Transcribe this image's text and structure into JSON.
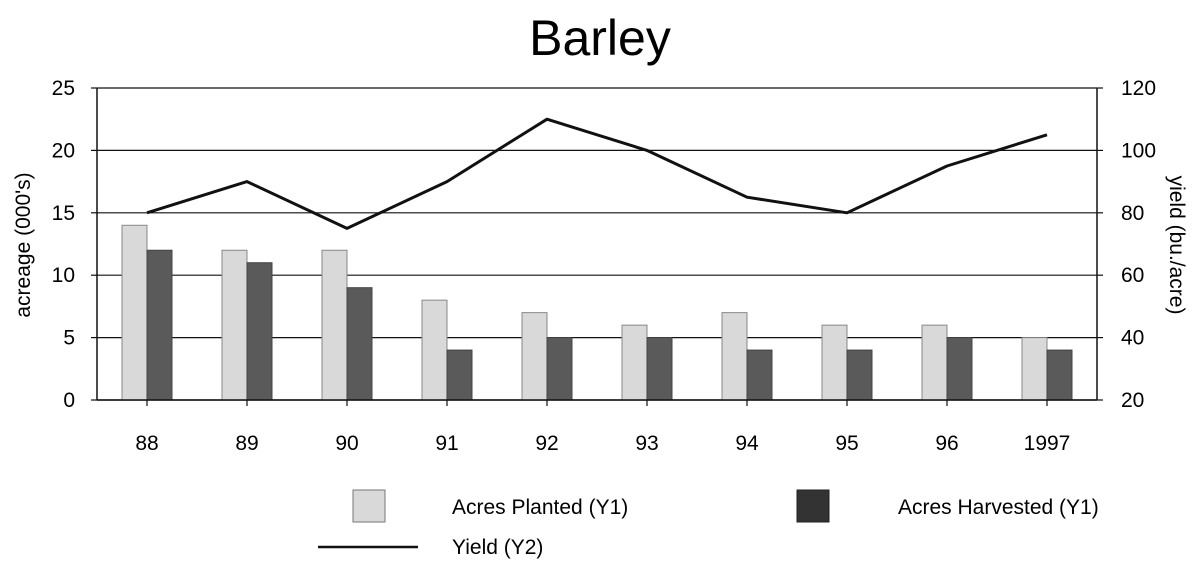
{
  "chart_data": {
    "type": "bar",
    "title": "Barley",
    "xlabel": "",
    "ylabel": "acreage (000's)",
    "y2label": "yield (bu./acre)",
    "categories": [
      "88",
      "89",
      "90",
      "91",
      "92",
      "93",
      "94",
      "95",
      "96",
      "1997"
    ],
    "ylim": [
      0,
      25
    ],
    "y2lim": [
      20,
      120
    ],
    "yticks": [
      "0",
      "5",
      "10",
      "15",
      "20",
      "25"
    ],
    "y2ticks": [
      "20",
      "40",
      "60",
      "80",
      "100",
      "120"
    ],
    "grid": "horizontal",
    "legend_position": "bottom",
    "series": [
      {
        "name": "Acres Planted (Y1)",
        "type": "bar",
        "axis": "y1",
        "values": [
          14,
          12,
          12,
          8,
          7,
          6,
          7,
          6,
          6,
          5
        ],
        "color": "#d9d9d9"
      },
      {
        "name": "Acres Harvested (Y1)",
        "type": "bar",
        "axis": "y1",
        "values": [
          12,
          11,
          9,
          4,
          5,
          5,
          4,
          4,
          5,
          4
        ],
        "color": "#5a5a5a"
      },
      {
        "name": "Yield (Y2)",
        "type": "line",
        "axis": "y2",
        "values": [
          80,
          90,
          75,
          90,
          110,
          100,
          85,
          80,
          95,
          105
        ],
        "color": "#111111"
      }
    ]
  }
}
